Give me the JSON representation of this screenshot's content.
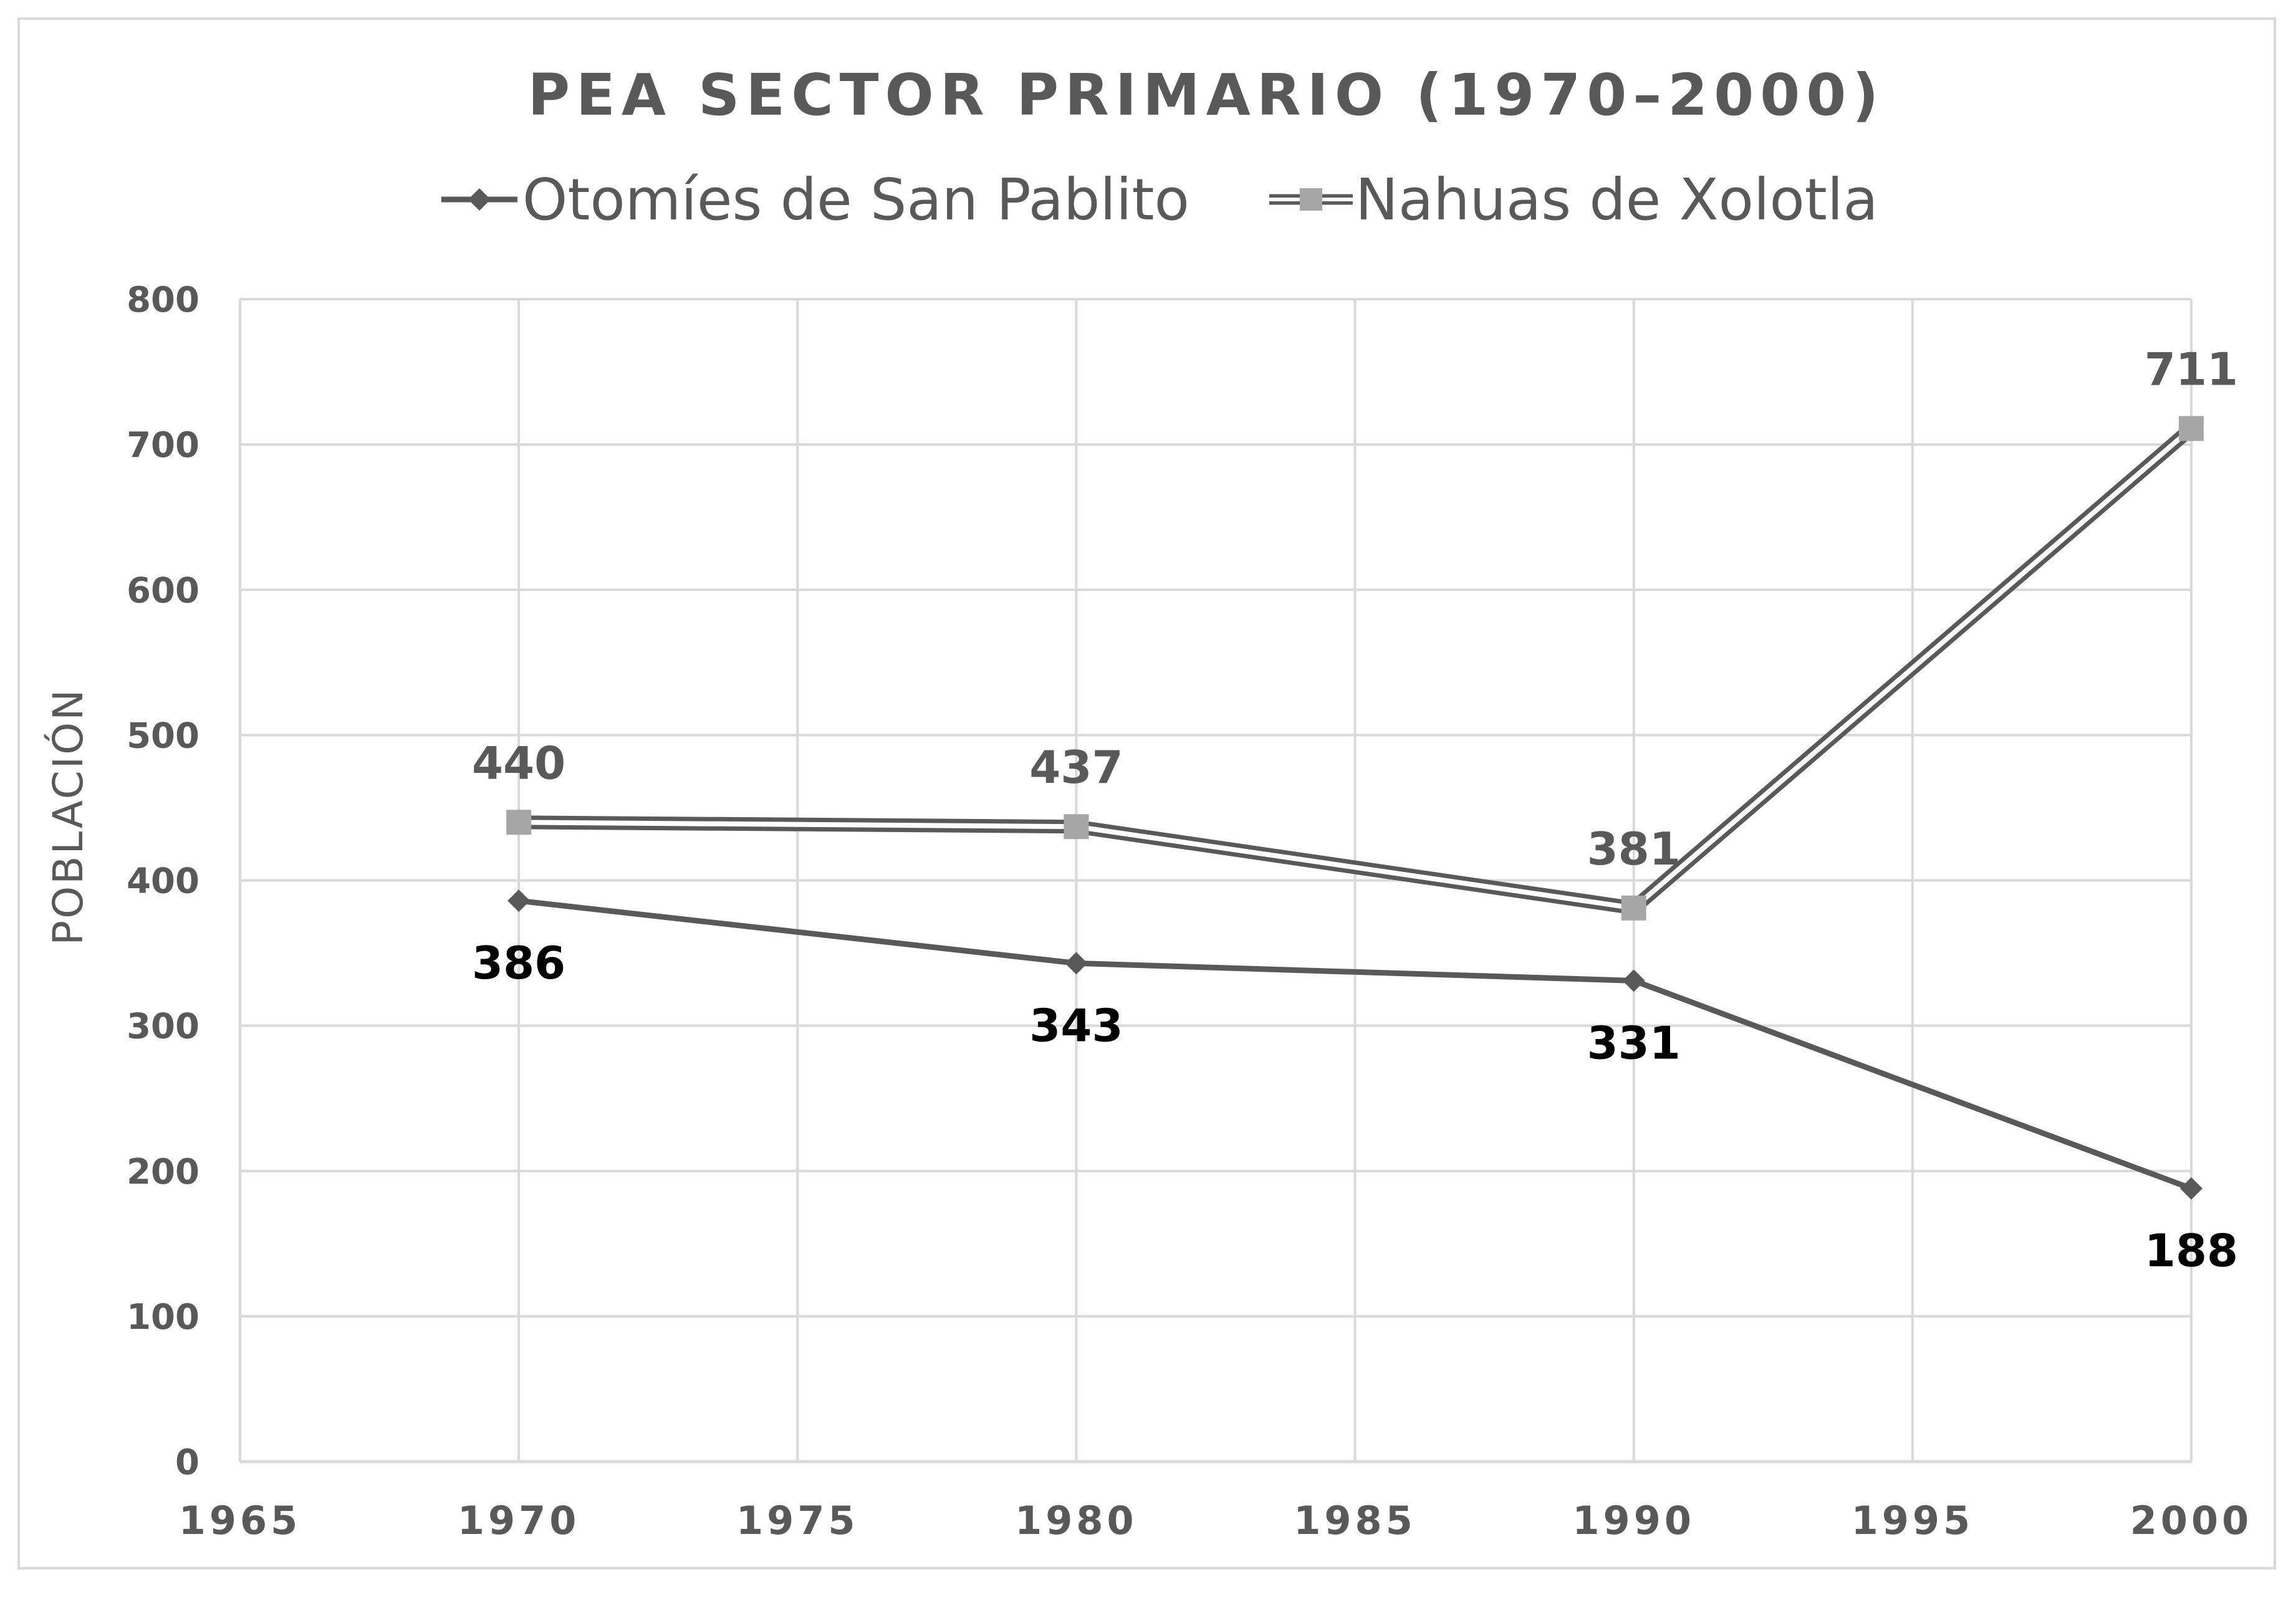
{
  "chart_data": {
    "type": "line",
    "title": "PEA SECTOR PRIMARIO (1970–2000)",
    "xlabel": "",
    "ylabel": "POBLACIÓN",
    "xlim": [
      1965,
      2000
    ],
    "ylim": [
      0,
      800
    ],
    "x_ticks": [
      "1965",
      "1970",
      "1975",
      "1980",
      "1985",
      "1990",
      "1995",
      "2000"
    ],
    "y_ticks": [
      "0",
      "100",
      "200",
      "300",
      "400",
      "500",
      "600",
      "700",
      "800"
    ],
    "grid": true,
    "legend_position": "top",
    "x": [
      1970,
      1980,
      1990,
      2000
    ],
    "series": [
      {
        "name": "Otomíes de San Pablito",
        "values": [
          386,
          343,
          331,
          188
        ],
        "labels": [
          "386",
          "343",
          "331",
          "188"
        ],
        "color": "#595959",
        "marker": "diamond"
      },
      {
        "name": "Nahuas de Xolotla",
        "values": [
          440,
          437,
          381,
          711
        ],
        "labels": [
          "440",
          "437",
          "381",
          "711"
        ],
        "color": "#a6a6a6",
        "outline_color": "#595959",
        "marker": "square"
      }
    ]
  }
}
